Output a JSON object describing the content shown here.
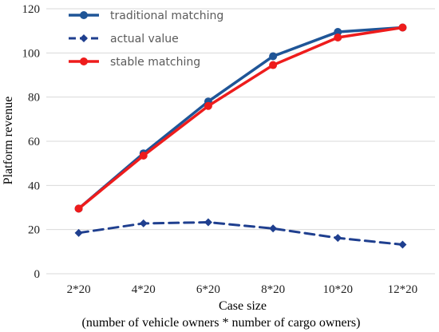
{
  "chart_data": {
    "type": "line",
    "categories": [
      "2*20",
      "4*20",
      "6*20",
      "8*20",
      "10*20",
      "12*20"
    ],
    "series": [
      {
        "name": "traditional matching",
        "values": [
          29.5,
          54.5,
          78,
          98.5,
          109.5,
          111.5
        ],
        "color": "#1f5597",
        "marker": "circle",
        "dash": false
      },
      {
        "name": "actual value",
        "values": [
          18.5,
          22.8,
          23.3,
          20.5,
          16.2,
          13.2
        ],
        "color": "#1f3f8f",
        "marker": "diamond",
        "dash": true
      },
      {
        "name": "stable matching",
        "values": [
          29.5,
          53.5,
          76,
          94.5,
          107,
          111.5
        ],
        "color": "#ee1c1c",
        "marker": "circle",
        "dash": false
      }
    ],
    "y_ticks": [
      "0",
      "20",
      "40",
      "60",
      "80",
      "100",
      "120"
    ],
    "ylim": [
      0,
      120
    ],
    "ylabel": "Platform revenue",
    "xlabel": "Case size",
    "xlabel_sub": "(number of vehicle owners * number of cargo owners)",
    "grid": "horizontal",
    "legend_position": "top-left"
  }
}
